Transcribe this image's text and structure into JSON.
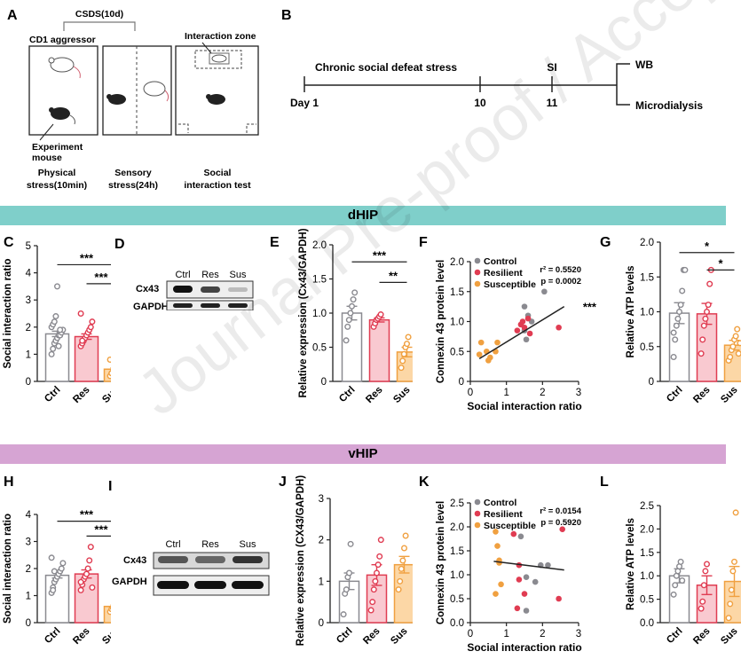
{
  "panels": {
    "A": {
      "letter": "A",
      "bracket_label": "CSDS(10d)",
      "aggressor_label": "CD1 aggressor",
      "experiment_label_1": "Experiment",
      "experiment_label_2": "mouse",
      "zone_label": "Interaction zone",
      "captions": [
        {
          "line1": "Physical",
          "line2": "stress(10min)"
        },
        {
          "line1": "Sensory",
          "line2": "stress(24h)"
        },
        {
          "line1": "Social",
          "line2": "interaction test"
        }
      ]
    },
    "B": {
      "letter": "B",
      "phase_label": "Chronic social defeat stress",
      "si_label": "SI",
      "days": [
        "Day 1",
        "10",
        "11"
      ],
      "outcomes": [
        "WB",
        "Microdialysis"
      ]
    }
  },
  "banners": {
    "top": "dHIP",
    "bottom": "vHIP"
  },
  "colors": {
    "teal": "#7fcfca",
    "pink": "#d6a4d3",
    "ctrl": "#8a8a90",
    "res": "#e03c52",
    "sus": "#f0a040",
    "res_fill": "#f9c9d0",
    "sus_fill": "#fcd7a6",
    "line": "#222222"
  },
  "blots": {
    "D": {
      "letter": "D",
      "lanes": [
        "Ctrl",
        "Res",
        "Sus"
      ],
      "rows": [
        "Cx43",
        "GAPDH"
      ]
    },
    "I": {
      "letter": "I",
      "lanes": [
        "Ctrl",
        "Res",
        "Sus"
      ],
      "rows": [
        "Cx43",
        "GAPDH"
      ]
    }
  },
  "watermark": "Journal Pre-proof / Accepted Manuscript",
  "chart_data": [
    {
      "id": "C",
      "letter": "C",
      "type": "bar",
      "ylabel": "Social interaction ratio",
      "categories": [
        "Ctrl",
        "Res",
        "Sus"
      ],
      "yticks": [
        "0",
        "1",
        "2",
        "3",
        "4",
        "5"
      ],
      "ylim": [
        0,
        5
      ],
      "series": [
        {
          "name": "Ctrl",
          "mean": 1.75,
          "sem": 0.1
        },
        {
          "name": "Res",
          "mean": 1.65,
          "sem": 0.1
        },
        {
          "name": "Sus",
          "mean": 0.45,
          "sem": 0.05
        }
      ],
      "points": [
        [
          1.0,
          1.2,
          1.4,
          1.5,
          1.6,
          1.7,
          1.7,
          1.8,
          1.9,
          2.0,
          2.1,
          2.2,
          2.4,
          3.5,
          1.3,
          1.9
        ],
        [
          1.3,
          1.4,
          1.5,
          1.6,
          1.7,
          1.8,
          1.9,
          2.0,
          2.2,
          2.5,
          1.5
        ],
        [
          0.2,
          0.3,
          0.35,
          0.4,
          0.45,
          0.5,
          0.55,
          0.6,
          0.7,
          0.8,
          0.3
        ]
      ],
      "annotations": [
        {
          "text": "***",
          "from": 0,
          "to": 2,
          "y": 4.3
        },
        {
          "text": "***",
          "from": 1,
          "to": 2,
          "y": 3.6
        }
      ]
    },
    {
      "id": "E",
      "letter": "E",
      "type": "bar",
      "ylabel": "Relative expression (Cx43/GAPDH)",
      "categories": [
        "Ctrl",
        "Res",
        "Sus"
      ],
      "yticks": [
        "0",
        "0.5",
        "1.0",
        "1.5",
        "2.0"
      ],
      "ylim": [
        0,
        2.0
      ],
      "series": [
        {
          "name": "Ctrl",
          "mean": 1.0,
          "sem": 0.1
        },
        {
          "name": "Res",
          "mean": 0.9,
          "sem": 0.03
        },
        {
          "name": "Sus",
          "mean": 0.43,
          "sem": 0.07
        }
      ],
      "points": [
        [
          0.6,
          0.8,
          0.9,
          1.0,
          1.1,
          1.2,
          1.3
        ],
        [
          0.8,
          0.85,
          0.9,
          0.92,
          0.95,
          0.98
        ],
        [
          0.2,
          0.3,
          0.4,
          0.5,
          0.55,
          0.65
        ]
      ],
      "annotations": [
        {
          "text": "***",
          "from": 0,
          "to": 2,
          "y": 1.75
        },
        {
          "text": "**",
          "from": 1,
          "to": 2,
          "y": 1.45
        }
      ]
    },
    {
      "id": "F",
      "letter": "F",
      "type": "scatter",
      "ylabel": "Connexin 43 protein level",
      "xlabel": "Social interaction ratio",
      "xticks": [
        "0",
        "1",
        "2",
        "3"
      ],
      "yticks": [
        "0",
        "0.5",
        "1.0",
        "1.5",
        "2.0"
      ],
      "xlim": [
        0,
        3
      ],
      "ylim": [
        0,
        2.0
      ],
      "legend": [
        "Control",
        "Resilient",
        "Susceptible"
      ],
      "stats": [
        "r² = 0.5520",
        "p = 0.0002"
      ],
      "significance": "***",
      "series": [
        {
          "name": "Control",
          "x": [
            1.5,
            1.6,
            1.7,
            1.55,
            2.05,
            1.5
          ],
          "y": [
            1.25,
            1.1,
            1.0,
            0.7,
            1.5,
            0.85
          ]
        },
        {
          "name": "Resilient",
          "x": [
            1.3,
            1.4,
            1.5,
            1.6,
            1.65,
            2.45,
            1.45
          ],
          "y": [
            0.85,
            0.95,
            0.9,
            1.05,
            0.8,
            0.9,
            1.0
          ]
        },
        {
          "name": "Susceptible",
          "x": [
            0.3,
            0.45,
            0.5,
            0.55,
            0.7,
            0.75,
            0.25
          ],
          "y": [
            0.65,
            0.5,
            0.35,
            0.4,
            0.5,
            0.65,
            0.45
          ]
        }
      ],
      "fit": {
        "x": [
          0.25,
          2.6
        ],
        "y": [
          0.38,
          1.25
        ]
      }
    },
    {
      "id": "G",
      "letter": "G",
      "type": "bar",
      "ylabel": "Relative ATP levels",
      "categories": [
        "Ctrl",
        "Res",
        "Sus"
      ],
      "yticks": [
        "0",
        "0.5",
        "1.0",
        "1.5",
        "2.0"
      ],
      "ylim": [
        0,
        2.0
      ],
      "series": [
        {
          "name": "Ctrl",
          "mean": 0.98,
          "sem": 0.15
        },
        {
          "name": "Res",
          "mean": 0.97,
          "sem": 0.15
        },
        {
          "name": "Sus",
          "mean": 0.52,
          "sem": 0.07
        }
      ],
      "points": [
        [
          0.35,
          0.6,
          0.8,
          0.9,
          1.0,
          1.1,
          1.3,
          1.6,
          1.6,
          0.7
        ],
        [
          0.4,
          0.6,
          0.8,
          0.9,
          1.0,
          1.1,
          1.4,
          1.6
        ],
        [
          0.3,
          0.35,
          0.45,
          0.5,
          0.6,
          0.65,
          0.75,
          0.4,
          0.55
        ]
      ],
      "annotations": [
        {
          "text": "*",
          "from": 0,
          "to": 2,
          "y": 1.85
        },
        {
          "text": "*",
          "from": 1,
          "to": 2,
          "y": 1.6
        }
      ]
    },
    {
      "id": "H",
      "letter": "H",
      "type": "bar",
      "ylabel": "Social interaction ratio",
      "categories": [
        "Ctrl",
        "Res",
        "Sus"
      ],
      "yticks": [
        "0",
        "1",
        "2",
        "3",
        "4"
      ],
      "ylim": [
        0,
        4
      ],
      "series": [
        {
          "name": "Ctrl",
          "mean": 1.75,
          "sem": 0.1
        },
        {
          "name": "Res",
          "mean": 1.8,
          "sem": 0.15
        },
        {
          "name": "Sus",
          "mean": 0.6,
          "sem": 0.05
        }
      ],
      "points": [
        [
          1.1,
          1.3,
          1.5,
          1.6,
          1.7,
          1.8,
          1.9,
          2.0,
          2.2,
          2.4,
          1.2,
          1.9
        ],
        [
          1.2,
          1.4,
          1.6,
          1.7,
          1.8,
          2.0,
          2.3,
          2.8,
          1.3,
          1.5
        ],
        [
          0.4,
          0.5,
          0.55,
          0.6,
          0.65,
          0.7,
          0.8,
          0.5,
          0.75
        ]
      ],
      "annotations": [
        {
          "text": "***",
          "from": 0,
          "to": 2,
          "y": 3.75
        },
        {
          "text": "***",
          "from": 1,
          "to": 2,
          "y": 3.2
        }
      ]
    },
    {
      "id": "J",
      "letter": "J",
      "type": "bar",
      "ylabel": "Relative expression (CX43/GAPDH)",
      "categories": [
        "Ctrl",
        "Res",
        "Sus"
      ],
      "yticks": [
        "0",
        "1",
        "2",
        "3"
      ],
      "ylim": [
        0,
        3
      ],
      "series": [
        {
          "name": "Ctrl",
          "mean": 1.0,
          "sem": 0.2
        },
        {
          "name": "Res",
          "mean": 1.15,
          "sem": 0.25
        },
        {
          "name": "Sus",
          "mean": 1.4,
          "sem": 0.2
        }
      ],
      "points": [
        [
          0.2,
          0.7,
          0.8,
          1.1,
          1.2,
          1.9
        ],
        [
          0.3,
          0.5,
          0.8,
          1.0,
          1.2,
          1.4,
          1.6,
          2.0
        ],
        [
          0.8,
          1.0,
          1.3,
          1.5,
          1.8,
          2.1
        ]
      ],
      "annotations": []
    },
    {
      "id": "K",
      "letter": "K",
      "type": "scatter",
      "ylabel": "Connexin 43 protein level",
      "xlabel": "Social interaction ratio",
      "xticks": [
        "0",
        "1",
        "2",
        "3"
      ],
      "yticks": [
        "0.0",
        "0.5",
        "1.0",
        "1.5",
        "2.0",
        "2.5"
      ],
      "xlim": [
        0,
        3
      ],
      "ylim": [
        0,
        2.5
      ],
      "legend": [
        "Control",
        "Resilient",
        "Susceptible"
      ],
      "stats": [
        "r² = 0.0154",
        "p = 0.5920"
      ],
      "significance": "",
      "series": [
        {
          "name": "Control",
          "x": [
            1.4,
            1.55,
            1.8,
            1.95,
            2.15,
            1.55
          ],
          "y": [
            1.8,
            0.95,
            0.85,
            1.2,
            1.2,
            0.25
          ]
        },
        {
          "name": "Resilient",
          "x": [
            1.2,
            1.3,
            1.35,
            1.5,
            2.45,
            2.55,
            1.35
          ],
          "y": [
            1.85,
            0.3,
            0.9,
            0.6,
            0.5,
            1.95,
            1.2
          ]
        },
        {
          "name": "Susceptible",
          "x": [
            0.7,
            0.75,
            0.8,
            0.85,
            0.7,
            0.8
          ],
          "y": [
            1.9,
            1.6,
            1.3,
            0.8,
            0.6,
            1.25
          ]
        }
      ],
      "fit": {
        "x": [
          0.65,
          2.6
        ],
        "y": [
          1.28,
          1.1
        ]
      }
    },
    {
      "id": "L",
      "letter": "L",
      "type": "bar",
      "ylabel": "Relative ATP levels",
      "categories": [
        "Ctrl",
        "Res",
        "Sus"
      ],
      "yticks": [
        "0.0",
        "0.5",
        "1.0",
        "1.5",
        "2.0",
        "2.5"
      ],
      "ylim": [
        0,
        2.5
      ],
      "series": [
        {
          "name": "Ctrl",
          "mean": 1.0,
          "sem": 0.15
        },
        {
          "name": "Res",
          "mean": 0.8,
          "sem": 0.2
        },
        {
          "name": "Sus",
          "mean": 0.88,
          "sem": 0.32
        }
      ],
      "points": [
        [
          0.6,
          0.8,
          1.0,
          1.1,
          1.2,
          1.3,
          0.9
        ],
        [
          0.3,
          0.45,
          0.8,
          1.1,
          1.25
        ],
        [
          0.1,
          0.4,
          0.7,
          1.1,
          1.3,
          2.35
        ]
      ],
      "annotations": []
    }
  ]
}
